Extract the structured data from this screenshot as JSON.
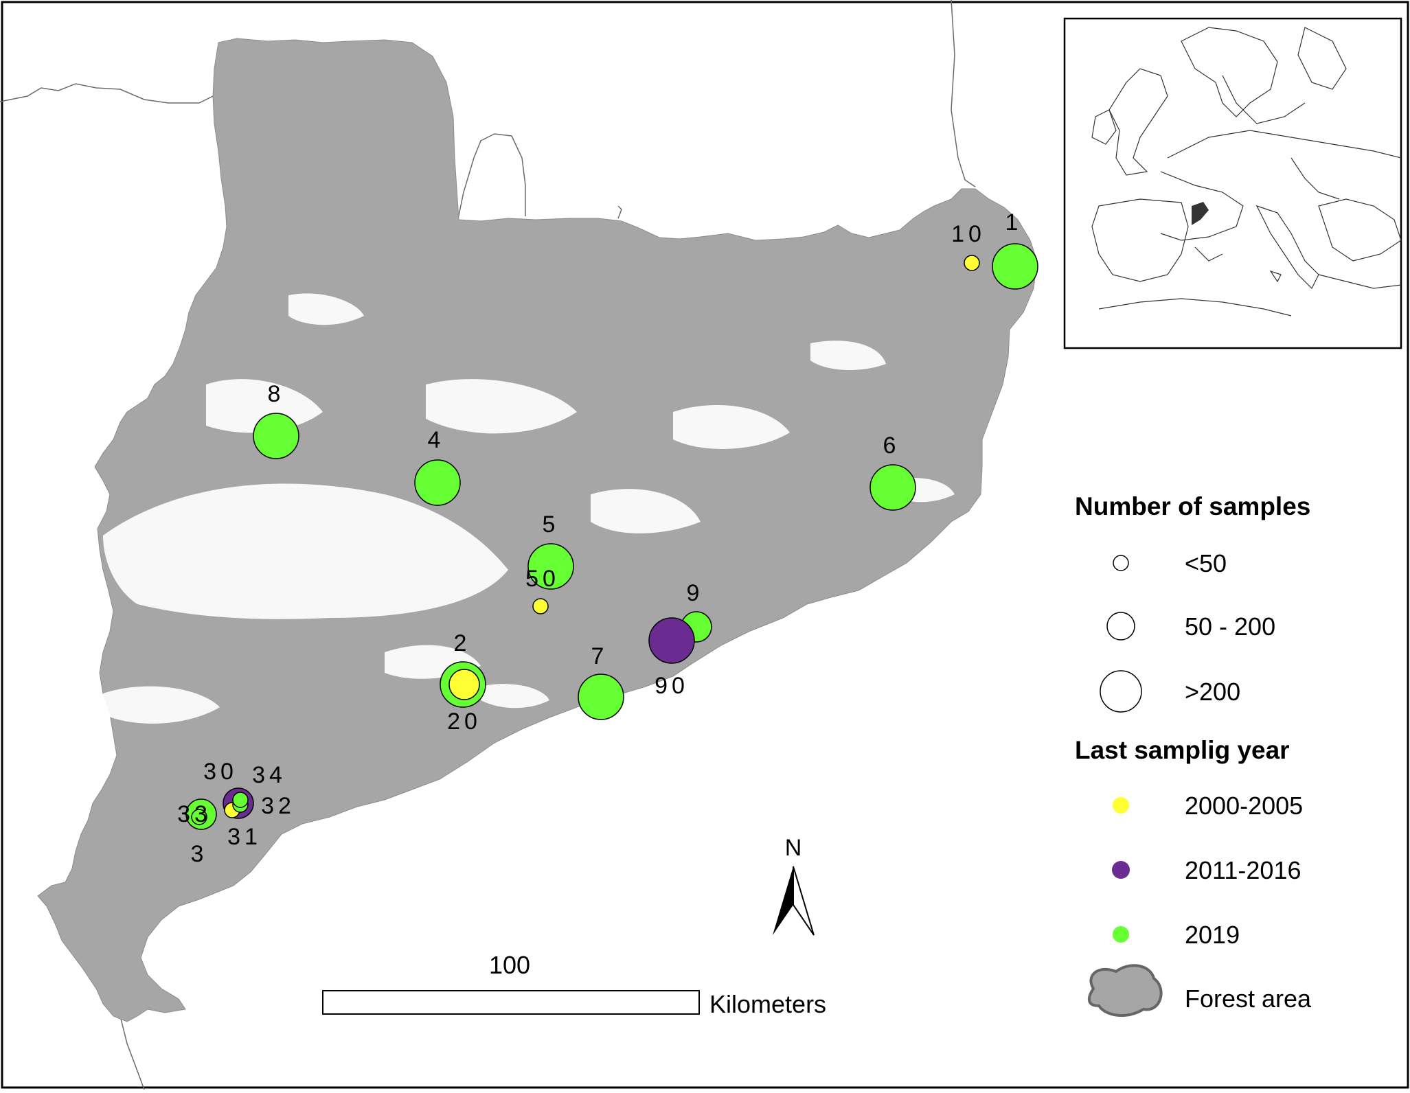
{
  "colors": {
    "forest": "#a6a6a6",
    "year_2000_2005": "#ffff33",
    "year_2011_2016": "#6a2c91",
    "year_2019": "#66ff33",
    "border": "#000000"
  },
  "sites": [
    {
      "label": "1",
      "year": "2019",
      "size": ">200"
    },
    {
      "label": "10",
      "year": "2000-2005",
      "size": "<50"
    },
    {
      "label": "8",
      "year": "2019",
      "size": ">200"
    },
    {
      "label": "4",
      "year": "2019",
      "size": ">200"
    },
    {
      "label": "6",
      "year": "2019",
      "size": ">200"
    },
    {
      "label": "5",
      "year": "2019",
      "size": ">200"
    },
    {
      "label": "50",
      "year": "2000-2005",
      "size": "<50"
    },
    {
      "label": "9",
      "year": "2019",
      "size": "50 - 200"
    },
    {
      "label": "90",
      "year": "2011-2016",
      "size": ">200"
    },
    {
      "label": "2",
      "year": "2019",
      "size": ">200"
    },
    {
      "label": "20",
      "year": "2000-2005",
      "size": "50 - 200"
    },
    {
      "label": "7",
      "year": "2019",
      "size": ">200"
    },
    {
      "label": "30",
      "year": "2011-2016",
      "size": "50 - 200"
    },
    {
      "label": "34",
      "year": "2019",
      "size": "<50"
    },
    {
      "label": "32",
      "year": "2019",
      "size": "<50"
    },
    {
      "label": "31",
      "year": "2000-2005",
      "size": "<50"
    },
    {
      "label": "33",
      "year": "2019",
      "size": "50 - 200"
    },
    {
      "label": "3",
      "year": "2019",
      "size": "<50"
    }
  ],
  "legend": {
    "samples_title": "Number of samples",
    "samples": [
      "<50",
      "50 - 200",
      ">200"
    ],
    "year_title": "Last samplig year",
    "years": [
      "2000-2005",
      "2011-2016",
      "2019"
    ],
    "forest_label": "Forest area"
  },
  "scale_bar": {
    "value": "100",
    "unit": "Kilometers"
  },
  "north_arrow": {
    "label": "N"
  }
}
